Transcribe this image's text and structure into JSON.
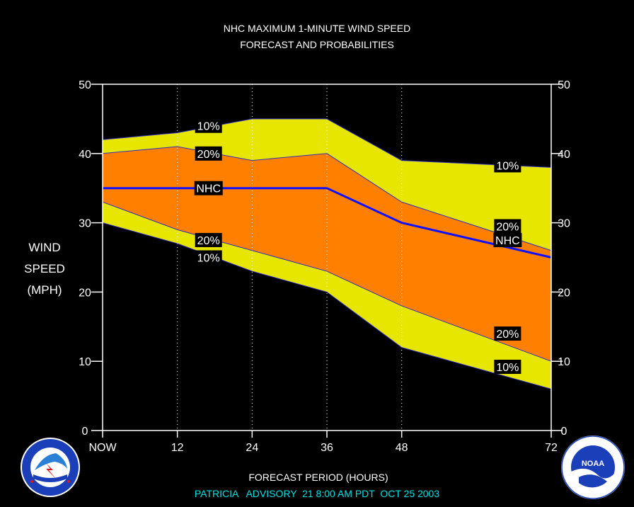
{
  "chart_data": {
    "type": "area",
    "title": "NHC MAXIMUM 1-MINUTE WIND SPEED",
    "subtitle": "FORECAST AND PROBABILITIES",
    "xlabel": "FORECAST PERIOD (HOURS)",
    "ylabel_lines": [
      "WIND",
      "SPEED",
      "(MPH)"
    ],
    "footer": "PATRICIA   ADVISORY  21 8:00 AM PDT  OCT 25 2003",
    "xlim": [
      0,
      72
    ],
    "ylim": [
      0,
      50
    ],
    "x_ticks": [
      {
        "value": 0,
        "label": "NOW"
      },
      {
        "value": 12,
        "label": "12"
      },
      {
        "value": 24,
        "label": "24"
      },
      {
        "value": 36,
        "label": "36"
      },
      {
        "value": 48,
        "label": "48"
      },
      {
        "value": 72,
        "label": "72"
      }
    ],
    "y_ticks": [
      0,
      10,
      20,
      30,
      40,
      50
    ],
    "grid": "vertical dotted at 12, 24, 36, 48",
    "x": [
      0,
      12,
      24,
      36,
      48,
      72
    ],
    "series": [
      {
        "name": "10%",
        "values": [
          42,
          43,
          45,
          45,
          39,
          38
        ],
        "color": "#e6e600"
      },
      {
        "name": "20%",
        "values": [
          40,
          41,
          39,
          40,
          33,
          26
        ],
        "color": "#ff8000"
      },
      {
        "name": "NHC",
        "values": [
          35,
          35,
          35,
          35,
          30,
          25
        ],
        "color": "#1010ff"
      },
      {
        "name": "20%",
        "values": [
          33,
          29,
          26,
          23,
          18,
          10
        ],
        "color": "#ff8000"
      },
      {
        "name": "10%",
        "values": [
          30,
          27,
          23,
          20,
          12,
          6
        ],
        "color": "#e6e600"
      }
    ],
    "labels": [
      {
        "text": "10%",
        "x": 17,
        "y": 44.0
      },
      {
        "text": "20%",
        "x": 17,
        "y": 40.0
      },
      {
        "text": "NHC",
        "x": 17,
        "y": 35.0
      },
      {
        "text": "20%",
        "x": 17,
        "y": 27.5
      },
      {
        "text": "10%",
        "x": 17,
        "y": 25.0
      },
      {
        "text": "10%",
        "x": 65,
        "y": 38.3
      },
      {
        "text": "20%",
        "x": 65,
        "y": 29.5
      },
      {
        "text": "NHC",
        "x": 65,
        "y": 27.5
      },
      {
        "text": "20%",
        "x": 65,
        "y": 14.0
      },
      {
        "text": "10%",
        "x": 65,
        "y": 9.2
      }
    ],
    "colors": {
      "background": "#000000",
      "yellow": "#e6e600",
      "orange": "#ff8000",
      "nhc_line": "#1010ff",
      "footer": "#00e0e0"
    }
  },
  "logos": {
    "left": {
      "name": "NWS logo",
      "text": "NATIONAL WEATHER SERVICE"
    },
    "right": {
      "name": "NOAA logo",
      "center_text": "NOAA",
      "ring_text": "NATIONAL OCEANIC AND ATMOSPHERIC ADMINISTRATION · U.S. DEPARTMENT OF COMMERCE"
    }
  }
}
